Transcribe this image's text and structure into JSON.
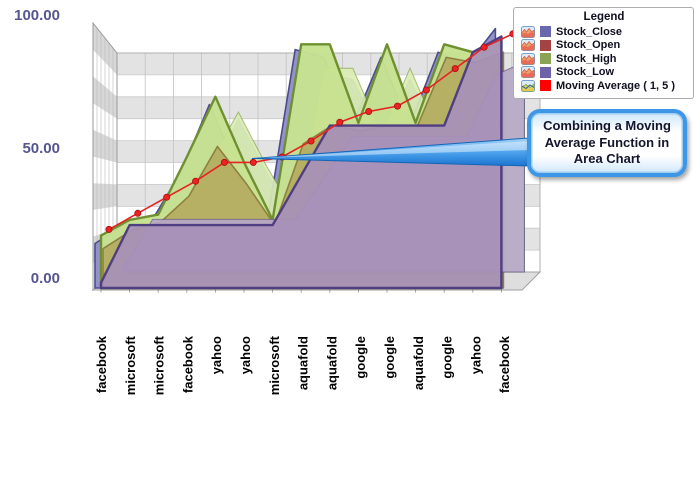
{
  "y_axis": {
    "ticks": [
      "0.00",
      "50.00",
      "100.00"
    ],
    "color": "#55558f"
  },
  "chart_data": {
    "type": "area",
    "style": "3d-depth-area",
    "title": "",
    "xlabel": "",
    "ylabel": "",
    "ylim": [
      0,
      100
    ],
    "grid": true,
    "legend_position": "top-right",
    "values_approximate": true,
    "categories": [
      "facebook",
      "microsoft",
      "microsoft",
      "facebook",
      "yahoo",
      "yahoo",
      "microsoft",
      "aquafold",
      "aquafold",
      "google",
      "google",
      "aquafold",
      "google",
      "yahoo",
      "facebook"
    ],
    "series": [
      {
        "name": "Stock_Close",
        "color": "#6a68ad",
        "fill": "#8f8fc6",
        "values": [
          17,
          24,
          26,
          44,
          70,
          45,
          24,
          91,
          88,
          62,
          88,
          62,
          90,
          85,
          99
        ]
      },
      {
        "name": "Stock_Open",
        "color": "#a34343",
        "fill": "#b4ab60",
        "values": [
          15,
          22,
          25,
          35,
          54,
          40,
          24,
          55,
          62,
          60,
          62,
          62,
          88,
          86,
          90
        ]
      },
      {
        "name": "Stock_High",
        "color": "#8aa355",
        "fill": "#c7e291",
        "values": [
          20,
          26,
          28,
          50,
          73,
          48,
          26,
          93,
          93,
          63,
          93,
          63,
          93,
          90,
          95
        ]
      },
      {
        "name": "Stock_Low",
        "color": "#6f61a8",
        "fill": "#a890b8",
        "values": [
          2,
          24,
          24,
          24,
          24,
          24,
          24,
          43,
          62,
          62,
          62,
          62,
          62,
          90,
          96
        ]
      },
      {
        "name": "Moving Average ( 1, 5 )",
        "color": "#fe0000",
        "type": "line",
        "values": [
          20,
          26,
          32,
          38,
          45,
          45,
          47,
          53,
          60,
          64,
          66,
          72,
          80,
          88,
          93
        ]
      }
    ]
  },
  "legend": {
    "title": "Legend",
    "items": [
      {
        "label": "Stock_Close",
        "color": "#6a68ad",
        "icon": "area-chart"
      },
      {
        "label": "Stock_Open",
        "color": "#a34343",
        "icon": "area-chart"
      },
      {
        "label": "Stock_High",
        "color": "#8aa355",
        "icon": "area-chart"
      },
      {
        "label": "Stock_Low",
        "color": "#6f61a8",
        "icon": "area-chart"
      },
      {
        "label": "Moving Average ( 1, 5 )",
        "color": "#fe0000",
        "icon": "moving-average-chart"
      }
    ]
  },
  "callout": {
    "text": "Combining a Moving Average Function in Area Chart",
    "border_color": "#3e97e6"
  }
}
